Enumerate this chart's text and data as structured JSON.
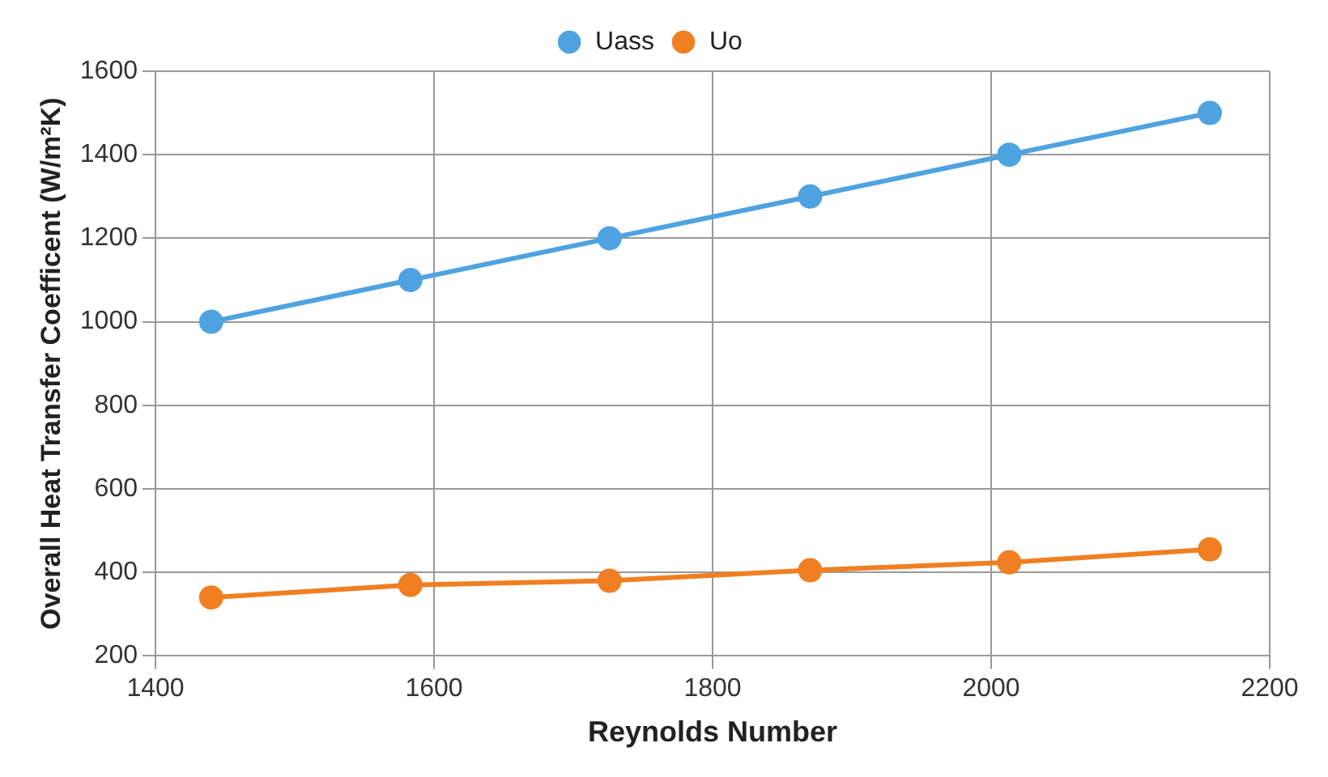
{
  "chart_data": {
    "type": "line",
    "xlabel": "Reynolds Number",
    "ylabel": "Overall Heat Transfer Coefficent (W/m²K)",
    "x": [
      1440,
      1583,
      1726,
      1870,
      2013,
      2157
    ],
    "series": [
      {
        "name": "Uass",
        "color": "#4ea3e0",
        "values": [
          1000,
          1100,
          1200,
          1300,
          1400,
          1500
        ]
      },
      {
        "name": "Uo",
        "color": "#f07f22",
        "values": [
          340,
          370,
          380,
          405,
          424,
          455
        ]
      }
    ],
    "xlim": [
      1400,
      2200
    ],
    "xticks": [
      1400,
      1600,
      1800,
      2000,
      2200
    ],
    "ylim": [
      200,
      1600
    ],
    "yticks": [
      200,
      400,
      600,
      800,
      1000,
      1200,
      1400,
      1600
    ],
    "grid": true,
    "legend": "top",
    "marker": "circle",
    "line_style": "solid"
  }
}
